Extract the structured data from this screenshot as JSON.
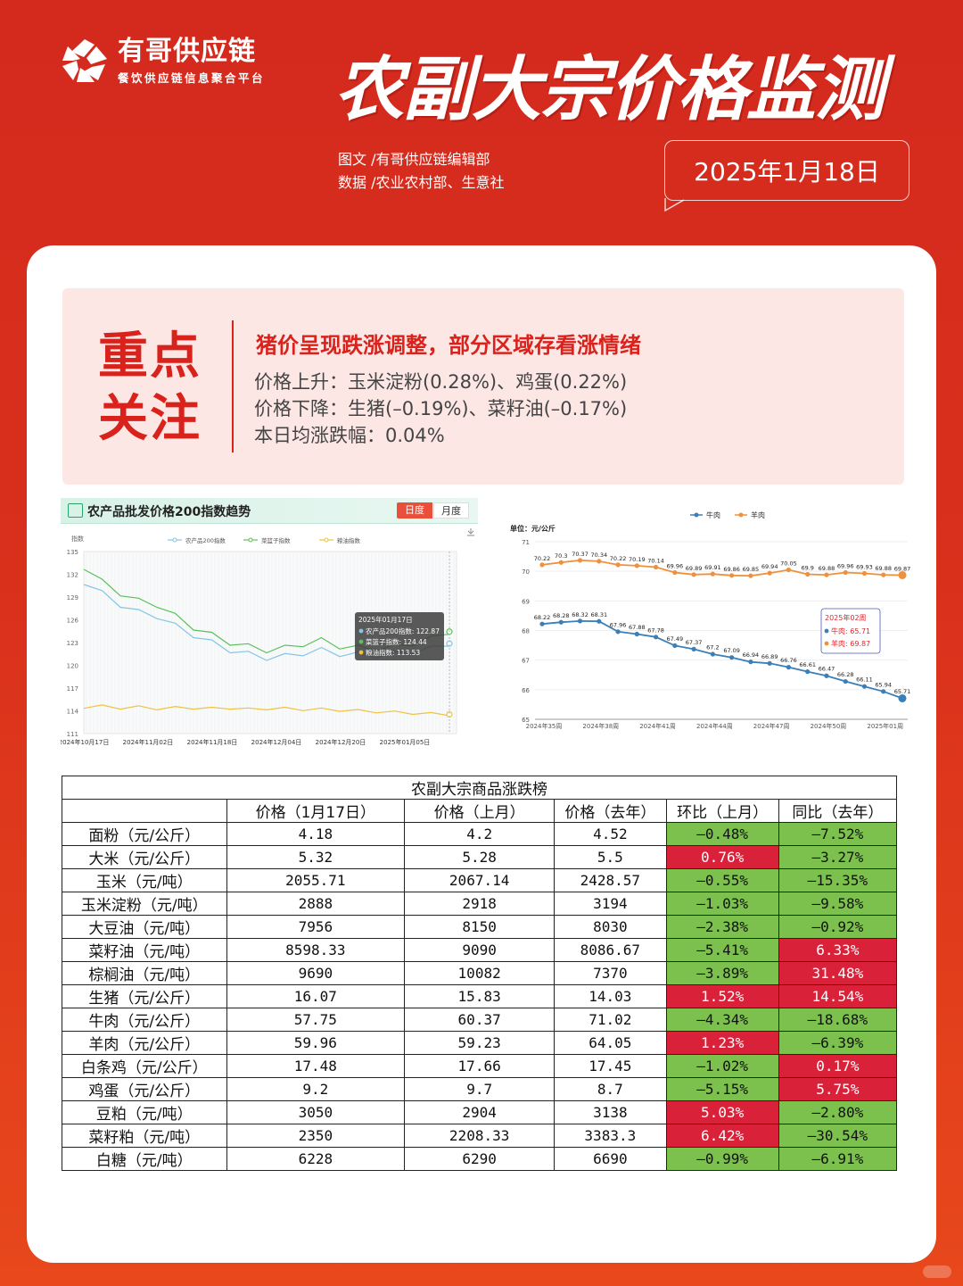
{
  "brand": {
    "name": "有哥供应链",
    "tagline": "餐饮供应链信息聚合平台"
  },
  "header": {
    "title": "农副大宗价格监测",
    "credit_text": "图文 /有哥供应链编辑部",
    "credit_data": "数据 /农业农村部、生意社",
    "date": "2025年1月18日"
  },
  "focus": {
    "label_line1": "重点",
    "label_line2": "关注",
    "headline": "猪价呈现跌涨调整，部分区域存看涨情绪",
    "line1": "价格上升：玉米淀粉(0.28%)、鸡蛋(0.22%)",
    "line2": "价格下降：生猪(–0.19%)、菜籽油(–0.17%)",
    "line3": "本日均涨跌幅：0.04%"
  },
  "colors": {
    "up": "#d9223a",
    "down": "#7cc04e",
    "accent": "#d9221c"
  },
  "chart_data": [
    {
      "type": "line",
      "title": "农产品批发价格200指数趋势",
      "tabs": [
        "日度",
        "月度"
      ],
      "ylabel": "指数",
      "ylim": [
        111,
        135
      ],
      "yticks": [
        111,
        114,
        117,
        120,
        123,
        126,
        129,
        132,
        135
      ],
      "xticks": [
        "2024年10月17日",
        "2024年11月02日",
        "2024年11月18日",
        "2024年12月04日",
        "2024年12月20日",
        "2025年01月05日"
      ],
      "series": [
        {
          "name": "农产品200指数",
          "color": "#86c4e4",
          "values": [
            131,
            129.5,
            128,
            127,
            126.5,
            125.2,
            124,
            123,
            122,
            121.5,
            121,
            121.2,
            121.6,
            122,
            121.5,
            121.4,
            121.3,
            121.5,
            121.8,
            122.2,
            122.87
          ]
        },
        {
          "name": "菜篮子指数",
          "color": "#5cc05a",
          "values": [
            133,
            131,
            129.5,
            128.5,
            128,
            126.5,
            125,
            124,
            123,
            122.5,
            122,
            122.3,
            122.8,
            123.3,
            122.5,
            122.3,
            122.2,
            122.4,
            122.9,
            123.5,
            124.44
          ]
        },
        {
          "name": "粮油指数",
          "color": "#f0c040",
          "values": [
            114.5,
            114.6,
            114.4,
            114.5,
            114.3,
            114.4,
            114.4,
            114.3,
            114.4,
            114.2,
            114.3,
            114.3,
            114.2,
            114.2,
            114.1,
            114,
            113.9,
            113.8,
            113.7,
            113.6,
            113.53
          ]
        }
      ],
      "tooltip": {
        "date": "2025年01月17日",
        "line1": "农产品200指数: 122.87",
        "line2": "菜篮子指数: 124.44",
        "line3": "粮油指数: 113.53"
      }
    },
    {
      "type": "line",
      "unit_label": "单位：元/公斤",
      "ylim": [
        65,
        71
      ],
      "yticks": [
        65,
        66,
        67,
        68,
        69,
        70,
        71
      ],
      "xticks": [
        "2024年35周",
        "2024年38周",
        "2024年41周",
        "2024年44周",
        "2024年47周",
        "2024年50周",
        "2025年01周"
      ],
      "series": [
        {
          "name": "牛肉",
          "color": "#3a7fb8",
          "values": [
            68.22,
            68.28,
            68.32,
            68.31,
            67.96,
            67.88,
            67.78,
            67.49,
            67.37,
            67.2,
            67.09,
            66.94,
            66.89,
            66.76,
            66.61,
            66.47,
            66.28,
            66.11,
            65.94,
            65.71
          ]
        },
        {
          "name": "羊肉",
          "color": "#f0903a",
          "values": [
            70.22,
            70.3,
            70.37,
            70.34,
            70.22,
            70.19,
            70.14,
            69.96,
            69.89,
            69.91,
            69.86,
            69.85,
            69.94,
            70.05,
            69.9,
            69.88,
            69.96,
            69.93,
            69.88,
            69.87
          ]
        }
      ],
      "tooltip": {
        "title": "2025年02周",
        "line1": "牛肉: 65.71",
        "line2": "羊肉: 69.87"
      }
    }
  ],
  "table": {
    "caption": "农副大宗商品涨跌榜",
    "headers": [
      "",
      "价格（1月17日）",
      "价格（上月）",
      "价格（去年）",
      "环比（上月）",
      "同比（去年）"
    ],
    "rows": [
      {
        "name": "面粉（元/公斤）",
        "p": "4.18",
        "pm": "4.2",
        "py": "4.52",
        "mom": "–0.48%",
        "yoy": "–7.52%",
        "mc": "down",
        "yc": "down"
      },
      {
        "name": "大米（元/公斤）",
        "p": "5.32",
        "pm": "5.28",
        "py": "5.5",
        "mom": "0.76%",
        "yoy": "–3.27%",
        "mc": "up",
        "yc": "down"
      },
      {
        "name": "玉米（元/吨）",
        "p": "2055.71",
        "pm": "2067.14",
        "py": "2428.57",
        "mom": "–0.55%",
        "yoy": "–15.35%",
        "mc": "down",
        "yc": "down"
      },
      {
        "name": "玉米淀粉（元/吨）",
        "p": "2888",
        "pm": "2918",
        "py": "3194",
        "mom": "–1.03%",
        "yoy": "–9.58%",
        "mc": "down",
        "yc": "down"
      },
      {
        "name": "大豆油（元/吨）",
        "p": "7956",
        "pm": "8150",
        "py": "8030",
        "mom": "–2.38%",
        "yoy": "–0.92%",
        "mc": "down",
        "yc": "down"
      },
      {
        "name": "菜籽油（元/吨）",
        "p": "8598.33",
        "pm": "9090",
        "py": "8086.67",
        "mom": "–5.41%",
        "yoy": "6.33%",
        "mc": "down",
        "yc": "up"
      },
      {
        "name": "棕榈油（元/吨）",
        "p": "9690",
        "pm": "10082",
        "py": "7370",
        "mom": "–3.89%",
        "yoy": "31.48%",
        "mc": "down",
        "yc": "up"
      },
      {
        "name": "生猪（元/公斤）",
        "p": "16.07",
        "pm": "15.83",
        "py": "14.03",
        "mom": "1.52%",
        "yoy": "14.54%",
        "mc": "up",
        "yc": "up"
      },
      {
        "name": "牛肉（元/公斤）",
        "p": "57.75",
        "pm": "60.37",
        "py": "71.02",
        "mom": "–4.34%",
        "yoy": "–18.68%",
        "mc": "down",
        "yc": "down"
      },
      {
        "name": "羊肉（元/公斤）",
        "p": "59.96",
        "pm": "59.23",
        "py": "64.05",
        "mom": "1.23%",
        "yoy": "–6.39%",
        "mc": "up",
        "yc": "down"
      },
      {
        "name": "白条鸡（元/公斤）",
        "p": "17.48",
        "pm": "17.66",
        "py": "17.45",
        "mom": "–1.02%",
        "yoy": "0.17%",
        "mc": "down",
        "yc": "up"
      },
      {
        "name": "鸡蛋（元/公斤）",
        "p": "9.2",
        "pm": "9.7",
        "py": "8.7",
        "mom": "–5.15%",
        "yoy": "5.75%",
        "mc": "down",
        "yc": "up"
      },
      {
        "name": "豆粕（元/吨）",
        "p": "3050",
        "pm": "2904",
        "py": "3138",
        "mom": "5.03%",
        "yoy": "–2.80%",
        "mc": "up",
        "yc": "down"
      },
      {
        "name": "菜籽粕（元/吨）",
        "p": "2350",
        "pm": "2208.33",
        "py": "3383.3",
        "mom": "6.42%",
        "yoy": "–30.54%",
        "mc": "up",
        "yc": "down"
      },
      {
        "name": "白糖（元/吨）",
        "p": "6228",
        "pm": "6290",
        "py": "6690",
        "mom": "–0.99%",
        "yoy": "–6.91%",
        "mc": "down",
        "yc": "down"
      }
    ]
  }
}
